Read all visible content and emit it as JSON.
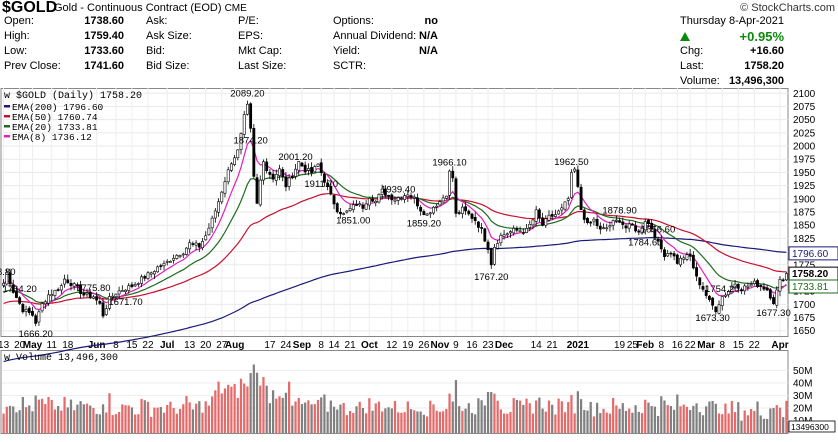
{
  "header": {
    "symbol": "$GOLD",
    "name": "Gold - Continuous Contract (EOD)",
    "exchange": "CME",
    "source": "© StockCharts.com",
    "date": "Thursday  8-Apr-2021",
    "change_pct": "+0.95%",
    "col1": [
      {
        "label": "Open:",
        "value": "1738.60"
      },
      {
        "label": "High:",
        "value": "1759.40"
      },
      {
        "label": "Low:",
        "value": "1733.60"
      },
      {
        "label": "Prev Close:",
        "value": "1741.60"
      }
    ],
    "col2": [
      {
        "label": "Ask:",
        "value": ""
      },
      {
        "label": "Ask Size:",
        "value": ""
      },
      {
        "label": "Bid:",
        "value": ""
      },
      {
        "label": "Bid Size:",
        "value": ""
      }
    ],
    "col3": [
      {
        "label": "P/E:",
        "value": ""
      },
      {
        "label": "EPS:",
        "value": ""
      },
      {
        "label": "Mkt Cap:",
        "value": ""
      },
      {
        "label": "Last Size:",
        "value": ""
      }
    ],
    "col4": [
      {
        "label": "Options:",
        "value": "no"
      },
      {
        "label": "Annual Dividend:",
        "value": "N/A"
      },
      {
        "label": "Yield:",
        "value": "N/A"
      },
      {
        "label": "SCTR:",
        "value": ""
      }
    ],
    "col5": [
      {
        "label": "Chg:",
        "value": "+16.60"
      },
      {
        "label": "Last:",
        "value": "1758.20"
      },
      {
        "label": "Volume:",
        "value": "13,496,300"
      }
    ]
  },
  "legend": {
    "title": "$GOLD (Daily) 1758.20",
    "items": [
      {
        "label": "EMA(200) 1796.60",
        "color": "#1a1a7a"
      },
      {
        "label": "EMA(50) 1760.74",
        "color": "#c8102e"
      },
      {
        "label": "EMA(20) 1733.81",
        "color": "#1e6b1e"
      },
      {
        "label": "EMA(8) 1736.12",
        "color": "#e020c0"
      }
    ]
  },
  "volume_legend": "Volume 13,496,300",
  "chart_data": {
    "type": "candlestick",
    "title": "$GOLD (Daily) 1758.20",
    "ylim": [
      1640,
      2110
    ],
    "yticks": [
      1650,
      1675,
      1700,
      1725,
      1750,
      1775,
      1800,
      1825,
      1850,
      1875,
      1900,
      1925,
      1950,
      1975,
      2000,
      2025,
      2050,
      2075,
      2100
    ],
    "xtick_labels": [
      {
        "label": "13",
        "i": 0
      },
      {
        "label": "20",
        "i": 5
      },
      {
        "label": "May",
        "i": 9,
        "bold": true
      },
      {
        "label": "11",
        "i": 15
      },
      {
        "label": "18",
        "i": 20
      },
      {
        "label": "Jun",
        "i": 29,
        "bold": true
      },
      {
        "label": "8",
        "i": 35
      },
      {
        "label": "15",
        "i": 40
      },
      {
        "label": "22",
        "i": 45
      },
      {
        "label": "Jul",
        "i": 51,
        "bold": true
      },
      {
        "label": "13",
        "i": 58
      },
      {
        "label": "20",
        "i": 63
      },
      {
        "label": "27",
        "i": 68
      },
      {
        "label": "Aug",
        "i": 72,
        "bold": true
      },
      {
        "label": "17",
        "i": 83
      },
      {
        "label": "24",
        "i": 88
      },
      {
        "label": "Sep",
        "i": 93,
        "bold": true
      },
      {
        "label": "8",
        "i": 99
      },
      {
        "label": "14",
        "i": 103
      },
      {
        "label": "21",
        "i": 108
      },
      {
        "label": "Oct",
        "i": 114,
        "bold": true
      },
      {
        "label": "12",
        "i": 121
      },
      {
        "label": "19",
        "i": 126
      },
      {
        "label": "26",
        "i": 131
      },
      {
        "label": "Nov",
        "i": 136,
        "bold": true
      },
      {
        "label": "9",
        "i": 141
      },
      {
        "label": "16",
        "i": 146
      },
      {
        "label": "23",
        "i": 151
      },
      {
        "label": "Dec",
        "i": 156,
        "bold": true
      },
      {
        "label": "14",
        "i": 166
      },
      {
        "label": "21",
        "i": 171
      },
      {
        "label": "2021",
        "i": 179,
        "bold": true
      },
      {
        "label": "19",
        "i": 192
      },
      {
        "label": "25",
        "i": 196
      },
      {
        "label": "Feb",
        "i": 200,
        "bold": true
      },
      {
        "label": "8",
        "i": 205
      },
      {
        "label": "16",
        "i": 210
      },
      {
        "label": "22",
        "i": 214
      },
      {
        "label": "Mar",
        "i": 219,
        "bold": true
      },
      {
        "label": "8",
        "i": 224
      },
      {
        "label": "15",
        "i": 229
      },
      {
        "label": "22",
        "i": 234
      },
      {
        "label": "Apr",
        "i": 242,
        "bold": true
      }
    ],
    "anchors": [
      [
        0,
        1740
      ],
      [
        1,
        1760
      ],
      [
        3,
        1725
      ],
      [
        6,
        1690
      ],
      [
        9,
        1680
      ],
      [
        10,
        1666
      ],
      [
        12,
        1700
      ],
      [
        14,
        1718
      ],
      [
        16,
        1725
      ],
      [
        18,
        1735
      ],
      [
        19,
        1748
      ],
      [
        21,
        1740
      ],
      [
        23,
        1730
      ],
      [
        25,
        1718
      ],
      [
        28,
        1715
      ],
      [
        30,
        1700
      ],
      [
        31,
        1680
      ],
      [
        33,
        1710
      ],
      [
        35,
        1722
      ],
      [
        37,
        1728
      ],
      [
        40,
        1735
      ],
      [
        43,
        1748
      ],
      [
        46,
        1760
      ],
      [
        48,
        1770
      ],
      [
        50,
        1775
      ],
      [
        53,
        1790
      ],
      [
        56,
        1800
      ],
      [
        58,
        1815
      ],
      [
        61,
        1810
      ],
      [
        63,
        1830
      ],
      [
        65,
        1860
      ],
      [
        67,
        1895
      ],
      [
        69,
        1935
      ],
      [
        71,
        1970
      ],
      [
        73,
        1990
      ],
      [
        74,
        2020
      ],
      [
        75,
        2055
      ],
      [
        76,
        2075
      ],
      [
        77,
        2030
      ],
      [
        78,
        1940
      ],
      [
        79,
        1890
      ],
      [
        80,
        1935
      ],
      [
        81,
        1975
      ],
      [
        82,
        1955
      ],
      [
        84,
        1940
      ],
      [
        86,
        1955
      ],
      [
        88,
        1925
      ],
      [
        90,
        1945
      ],
      [
        92,
        1970
      ],
      [
        94,
        1955
      ],
      [
        96,
        1950
      ],
      [
        98,
        1965
      ],
      [
        100,
        1935
      ],
      [
        102,
        1905
      ],
      [
        104,
        1880
      ],
      [
        106,
        1870
      ],
      [
        108,
        1880
      ],
      [
        110,
        1890
      ],
      [
        112,
        1885
      ],
      [
        114,
        1905
      ],
      [
        116,
        1895
      ],
      [
        118,
        1915
      ],
      [
        120,
        1905
      ],
      [
        122,
        1900
      ],
      [
        124,
        1905
      ],
      [
        126,
        1910
      ],
      [
        128,
        1900
      ],
      [
        130,
        1880
      ],
      [
        132,
        1870
      ],
      [
        134,
        1885
      ],
      [
        136,
        1895
      ],
      [
        138,
        1910
      ],
      [
        139,
        1950
      ],
      [
        140,
        1940
      ],
      [
        141,
        1870
      ],
      [
        143,
        1880
      ],
      [
        145,
        1870
      ],
      [
        147,
        1860
      ],
      [
        149,
        1840
      ],
      [
        151,
        1808
      ],
      [
        152,
        1778
      ],
      [
        153,
        1810
      ],
      [
        155,
        1830
      ],
      [
        157,
        1835
      ],
      [
        159,
        1840
      ],
      [
        161,
        1840
      ],
      [
        163,
        1840
      ],
      [
        165,
        1860
      ],
      [
        166,
        1875
      ],
      [
        168,
        1850
      ],
      [
        170,
        1865
      ],
      [
        172,
        1870
      ],
      [
        174,
        1880
      ],
      [
        176,
        1900
      ],
      [
        177,
        1945
      ],
      [
        178,
        1955
      ],
      [
        179,
        1920
      ],
      [
        180,
        1880
      ],
      [
        182,
        1850
      ],
      [
        184,
        1860
      ],
      [
        186,
        1840
      ],
      [
        188,
        1845
      ],
      [
        190,
        1855
      ],
      [
        192,
        1860
      ],
      [
        194,
        1845
      ],
      [
        196,
        1850
      ],
      [
        198,
        1835
      ],
      [
        200,
        1860
      ],
      [
        202,
        1845
      ],
      [
        204,
        1815
      ],
      [
        206,
        1795
      ],
      [
        208,
        1800
      ],
      [
        210,
        1780
      ],
      [
        212,
        1790
      ],
      [
        214,
        1790
      ],
      [
        216,
        1750
      ],
      [
        218,
        1730
      ],
      [
        220,
        1705
      ],
      [
        222,
        1690
      ],
      [
        224,
        1715
      ],
      [
        226,
        1725
      ],
      [
        228,
        1740
      ],
      [
        230,
        1730
      ],
      [
        232,
        1735
      ],
      [
        234,
        1740
      ],
      [
        236,
        1735
      ],
      [
        238,
        1728
      ],
      [
        240,
        1705
      ],
      [
        241,
        1725
      ],
      [
        242,
        1744
      ],
      [
        244,
        1758
      ]
    ],
    "series": [
      {
        "name": "EMA(200)",
        "color": "#1a1a7a",
        "period": 200
      },
      {
        "name": "EMA(50)",
        "color": "#c8102e",
        "period": 50
      },
      {
        "name": "EMA(20)",
        "color": "#1e6b1e",
        "period": 20
      },
      {
        "name": "EMA(8)",
        "color": "#e020c0",
        "period": 8
      }
    ],
    "price_labels": [
      {
        "i": 0,
        "value": "88.80"
      },
      {
        "i": 5,
        "value": "1764.20"
      },
      {
        "i": 10,
        "value": "1666.20"
      },
      {
        "i": 28,
        "value": "1775.80"
      },
      {
        "i": 38,
        "value": "1671.70"
      },
      {
        "i": 76,
        "value": "2089.20"
      },
      {
        "i": 77,
        "value": "1874.20"
      },
      {
        "i": 91,
        "value": "2001.20"
      },
      {
        "i": 99,
        "value": "1911.70"
      },
      {
        "i": 109,
        "value": "1851.00"
      },
      {
        "i": 123,
        "value": "1939.40"
      },
      {
        "i": 131,
        "value": "1859.20"
      },
      {
        "i": 139,
        "value": "1966.10"
      },
      {
        "i": 152,
        "value": "1767.20"
      },
      {
        "i": 177,
        "value": "1962.50"
      },
      {
        "i": 192,
        "value": "1878.90"
      },
      {
        "i": 204,
        "value": "1856.60"
      },
      {
        "i": 200,
        "value": "1784.60"
      },
      {
        "i": 224,
        "value": "1754.20"
      },
      {
        "i": 221,
        "value": "1673.30"
      },
      {
        "i": 240,
        "value": "1677.30"
      }
    ],
    "right_labels": [
      {
        "value": "1796.60",
        "color": "#1a1a7a"
      },
      {
        "value": "1758.20",
        "color": "#000000"
      },
      {
        "value": "1733.81",
        "color": "#1e6b1e"
      }
    ],
    "volume": {
      "ticks": [
        "10M",
        "20M",
        "30M",
        "40M",
        "50M"
      ],
      "tick_values": [
        10,
        20,
        30,
        40,
        50
      ],
      "ymax": 60,
      "last_label": "13496300",
      "up_color": "#e56b6b",
      "down_color": "#808080"
    }
  }
}
